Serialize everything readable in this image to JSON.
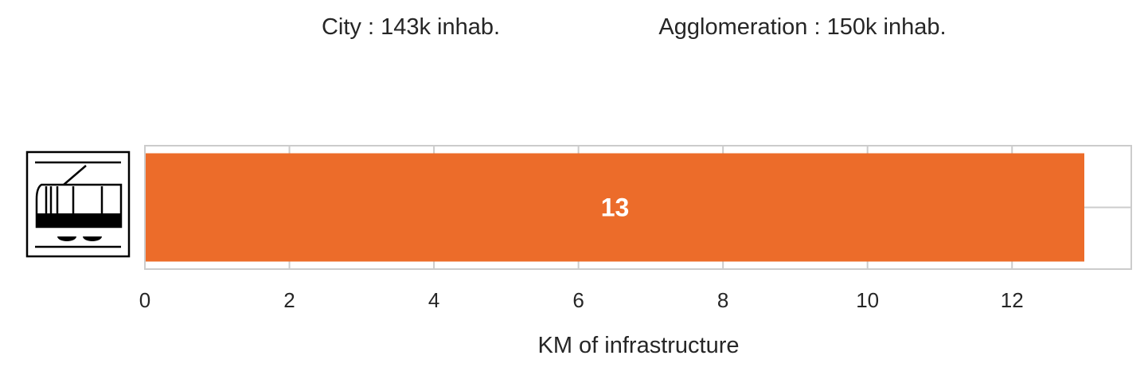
{
  "header": {
    "city": "City : 143k inhab.",
    "agglomeration": "Agglomeration : 150k inhab."
  },
  "mode_icon": "tram-icon",
  "colors": {
    "bar": "#EC6C2A",
    "frame": "#CCCCCC",
    "grid": "#CCCCCC",
    "text": "#262626"
  },
  "chart_data": {
    "type": "bar",
    "orientation": "horizontal",
    "categories": [
      "tram"
    ],
    "values": [
      13
    ],
    "data_labels": [
      "13"
    ],
    "xlabel": "KM of infrastructure",
    "ylabel": "",
    "xlim": [
      0,
      13.65
    ],
    "xticks": [
      0,
      2,
      4,
      6,
      8,
      10,
      12
    ],
    "xtick_labels": [
      "0",
      "2",
      "4",
      "6",
      "8",
      "10",
      "12"
    ],
    "grid": true
  }
}
